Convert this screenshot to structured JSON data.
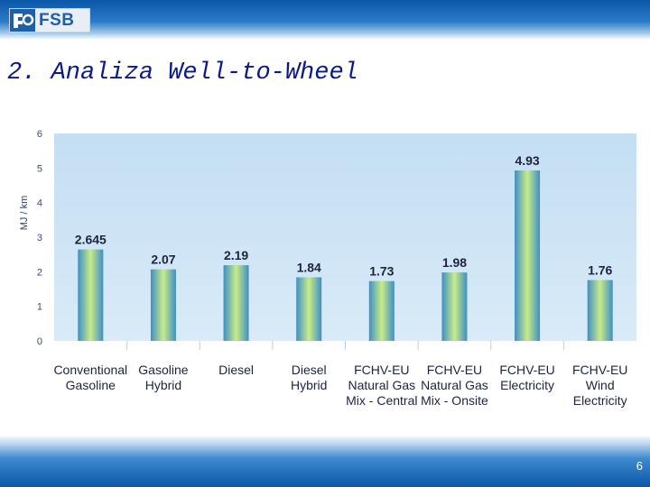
{
  "header": {
    "logo_text": "FSB"
  },
  "slide": {
    "title": "2. Analiza Well-to-Wheel",
    "page_number": "6"
  },
  "colors": {
    "header_blue": "#0b57a8",
    "plot_bg": "#c9e1f4",
    "bar_green_center": "#c8ec88",
    "bar_blue_edge": "#3e8fc6"
  },
  "chart_data": {
    "type": "bar",
    "title": "",
    "xlabel": "",
    "ylabel": "MJ / km",
    "ylim": [
      0,
      6
    ],
    "yticks": [
      "0",
      "1",
      "2",
      "3",
      "4",
      "5",
      "6"
    ],
    "grid": false,
    "categories": [
      [
        "Conventional",
        "Gasoline"
      ],
      [
        "Gasoline",
        "Hybrid"
      ],
      [
        "Diesel"
      ],
      [
        "Diesel",
        "Hybrid"
      ],
      [
        "FCHV-EU",
        "Natural Gas",
        "Mix - Central"
      ],
      [
        "FCHV-EU",
        "Natural Gas",
        "Mix - Onsite"
      ],
      [
        "FCHV-EU",
        "Electricity"
      ],
      [
        "FCHV-EU",
        "Wind",
        "Electricity"
      ]
    ],
    "values": [
      2.645,
      2.07,
      2.19,
      1.84,
      1.73,
      1.98,
      4.93,
      1.76
    ],
    "value_labels": [
      "2.645",
      "2.07",
      "2.19",
      "1.84",
      "1.73",
      "1.98",
      "4.93",
      "1.76"
    ]
  }
}
